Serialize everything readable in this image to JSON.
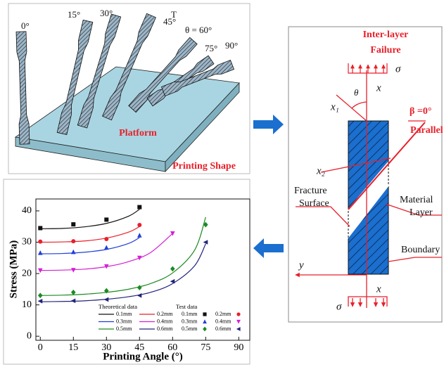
{
  "illustration": {
    "angle_labels": [
      "0°",
      "15°",
      "30°",
      "45°",
      "T",
      "θ = 60°",
      "75°",
      "90°"
    ],
    "platform": "Platform",
    "caption": "Printing Shape"
  },
  "diagram": {
    "title": [
      "Inter-layer",
      "Failure"
    ],
    "sigma_top": "σ",
    "sigma_bottom": "σ",
    "x_top": "x",
    "x_bottom": "x",
    "theta": "θ",
    "x1": "x₁",
    "x2": "x₂",
    "beta": "β =0°",
    "parallel": "Parallel",
    "fracture": [
      "Fracture",
      "Surface"
    ],
    "material": [
      "Material",
      "Layer"
    ],
    "boundary": "Boundary",
    "y": "y"
  },
  "chart_data": {
    "type": "line",
    "xlabel": "Printing Angle (°)",
    "ylabel": "Stress (MPa)",
    "xlim": [
      -2,
      95
    ],
    "ylim": [
      -1.3,
      43.8
    ],
    "xticks": [
      0,
      15,
      30,
      45,
      60,
      75,
      90
    ],
    "yticks": [
      0,
      10,
      20,
      30,
      40
    ],
    "series_groups": [
      {
        "title": "Theoretical data",
        "style": "line",
        "series": [
          {
            "name": "0.1mm",
            "color": "#111111",
            "x": [
              0,
              10,
              20,
              30,
              40,
              45
            ],
            "values": [
              34.3,
              34.4,
              34.9,
              36.0,
              38.3,
              40.5
            ]
          },
          {
            "name": "0.2mm",
            "color": "#e8202a",
            "x": [
              0,
              10,
              20,
              30,
              40,
              45
            ],
            "values": [
              30.0,
              30.1,
              30.4,
              31.3,
              33.2,
              35.0
            ]
          },
          {
            "name": "0.3mm",
            "color": "#1f3fd8",
            "x": [
              0,
              10,
              20,
              30,
              40,
              45
            ],
            "values": [
              26.3,
              26.4,
              26.8,
              27.7,
              29.6,
              31.5
            ]
          },
          {
            "name": "0.4mm",
            "color": "#d61ed6",
            "x": [
              0,
              10,
              20,
              30,
              40,
              50,
              60
            ],
            "values": [
              21.0,
              21.1,
              21.4,
              22.2,
              23.8,
              26.7,
              32.8
            ]
          },
          {
            "name": "0.5mm",
            "color": "#1c8a22",
            "x": [
              0,
              10,
              20,
              30,
              40,
              50,
              60,
              70,
              75
            ],
            "values": [
              13.0,
              13.1,
              13.4,
              14.0,
              15.0,
              16.8,
              20.2,
              27.5,
              38.0
            ]
          },
          {
            "name": "0.6mm",
            "color": "#22237a",
            "x": [
              0,
              10,
              20,
              30,
              40,
              50,
              60,
              70,
              75
            ],
            "values": [
              11.0,
              11.1,
              11.3,
              11.8,
              12.6,
              14.0,
              16.8,
              22.5,
              29.5
            ]
          }
        ]
      },
      {
        "title": "Test data",
        "style": "marker",
        "series": [
          {
            "name": "0.1mm",
            "color": "#111111",
            "marker": "square",
            "x": [
              0,
              15,
              30,
              45
            ],
            "values": [
              34.5,
              35.7,
              37.2,
              41.2
            ]
          },
          {
            "name": "0.2mm",
            "color": "#e8202a",
            "marker": "circle",
            "x": [
              0,
              15,
              30,
              45
            ],
            "values": [
              30.2,
              30.3,
              31.0,
              35.5
            ]
          },
          {
            "name": "0.3mm",
            "color": "#1f3fd8",
            "marker": "triangle-up",
            "x": [
              0,
              15,
              30,
              45
            ],
            "values": [
              26.6,
              26.9,
              28.3,
              32.2
            ]
          },
          {
            "name": "0.4mm",
            "color": "#d61ed6",
            "marker": "triangle-down",
            "x": [
              0,
              15,
              30,
              45,
              60
            ],
            "values": [
              21.0,
              21.1,
              22.3,
              25.0,
              32.8
            ]
          },
          {
            "name": "0.5mm",
            "color": "#1c8a22",
            "marker": "diamond",
            "x": [
              0,
              15,
              30,
              45,
              60,
              75
            ],
            "values": [
              13.0,
              14.0,
              14.5,
              15.5,
              21.5,
              35.6
            ]
          },
          {
            "name": "0.6mm",
            "color": "#22237a",
            "marker": "triangle-left",
            "x": [
              0,
              15,
              30,
              45,
              60,
              75
            ],
            "values": [
              11.2,
              11.3,
              11.7,
              13.0,
              17.5,
              30.0
            ]
          }
        ]
      }
    ]
  }
}
